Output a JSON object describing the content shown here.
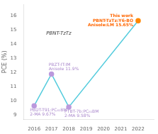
{
  "chart_data": {
    "type": "line",
    "x": [
      2016,
      2017,
      2018,
      2022
    ],
    "values": [
      9.67,
      11.9,
      9.58,
      15.65
    ],
    "color": "#55ccdd",
    "colors": [
      "#bb99dd",
      "#bb99dd",
      "#bb99dd",
      "#ff8800"
    ],
    "marker": "circle",
    "xlim": [
      2015.4,
      2022.9
    ],
    "ylim": [
      8.7,
      16.8
    ],
    "xticks": [
      2016,
      2017,
      2018,
      2019,
      2020,
      2021,
      2022
    ],
    "yticks": [
      9,
      10,
      11,
      12,
      13,
      14,
      15,
      16
    ],
    "ylabel": "PCE (%)",
    "grid": false,
    "annotations": [
      {
        "text": "PBDT-T91:PC₆₁BM\n2-MA 9.67%",
        "x": 2016,
        "y": 9.67,
        "color": "#aa88cc"
      },
      {
        "text": "PBZT-IT:IM\nAnisole 11.9%",
        "x": 2017,
        "y": 11.9,
        "color": "#aa88cc"
      },
      {
        "text": "PTBT-7b:PC₆₁BM\n2-MA 9.58%",
        "x": 2018,
        "y": 9.58,
        "color": "#aa88cc"
      },
      {
        "text": "This work\nPBNT-TzTz:Y6-BO\nAnisole:LM 15.65%",
        "x": 2022,
        "y": 15.65,
        "color": "#ff6600"
      },
      {
        "text": "PBNT-TzTz"
      }
    ]
  }
}
